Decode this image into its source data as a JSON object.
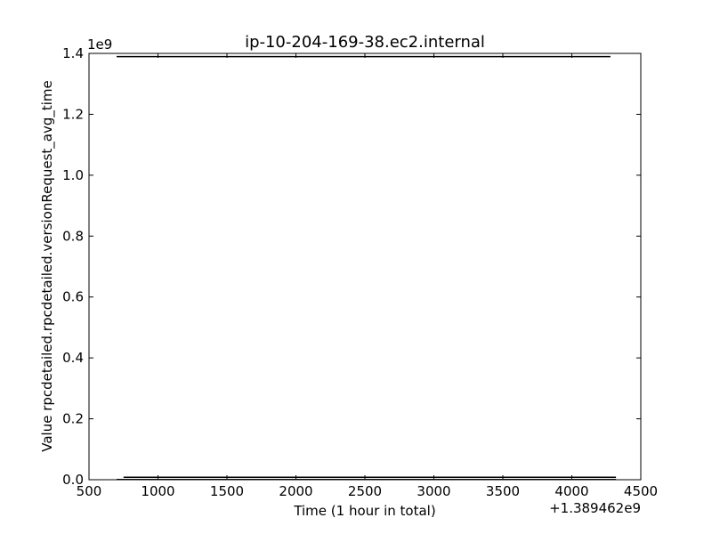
{
  "chart_data": {
    "type": "line",
    "title": "ip-10-204-169-38.ec2.internal",
    "xlabel": "Time (1 hour in total)",
    "ylabel": "Value rpcdetailed.rpcdetailed.versionRequest_avg_time",
    "x_offset_label": "+1.389462e9",
    "y_multiplier_label": "1e9",
    "xlim": [
      500,
      4500
    ],
    "ylim": [
      0,
      1.4
    ],
    "x_ticks": [
      500,
      1000,
      1500,
      2000,
      2500,
      3000,
      3500,
      4000,
      4500
    ],
    "x_tick_labels": [
      "500",
      "1000",
      "1500",
      "2000",
      "2500",
      "3000",
      "3500",
      "4000",
      "4500"
    ],
    "y_ticks": [
      0,
      0.2,
      0.4,
      0.6,
      0.8,
      1.0,
      1.2,
      1.4
    ],
    "y_tick_labels": [
      "0.0",
      "0.2",
      "0.4",
      "0.6",
      "0.8",
      "1.0",
      "1.2",
      "1.4"
    ],
    "grid": false,
    "series": [
      {
        "x": [
          700,
          4280
        ],
        "y": [
          1.3894,
          1.3894
        ]
      },
      {
        "x": [
          700,
          4320
        ],
        "y": [
          0.001,
          0.001
        ]
      },
      {
        "x": [
          750,
          4320
        ],
        "y": [
          0.008,
          0.008
        ]
      }
    ]
  }
}
